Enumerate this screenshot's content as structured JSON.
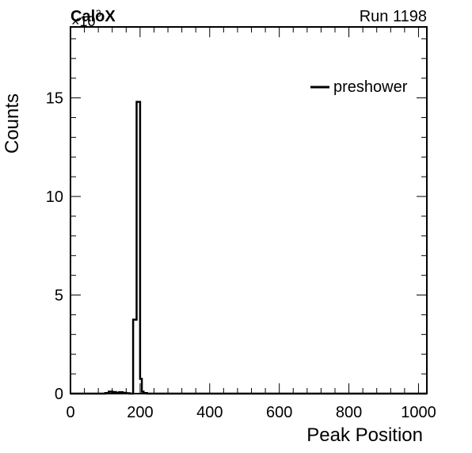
{
  "chart_data": {
    "type": "histogram-step",
    "experiment_label": "CaloX",
    "run_label": "Run 1198",
    "xlabel": "Peak Position",
    "ylabel": "Counts",
    "y_multiplier_label": "×10",
    "y_multiplier_exp": "3",
    "xlim": [
      0,
      1024
    ],
    "ylim": [
      0,
      18.6
    ],
    "y_units": "×10^3 counts",
    "x_ticks": [
      0,
      200,
      400,
      600,
      800,
      1000
    ],
    "x_tick_labels": [
      "0",
      "200",
      "400",
      "600",
      "800",
      "1000"
    ],
    "y_ticks": [
      0,
      5,
      10,
      15
    ],
    "y_tick_labels": [
      "0",
      "5",
      "10",
      "15"
    ],
    "legend": {
      "placement": "top-right",
      "entries": [
        "preshower"
      ]
    },
    "grid": false,
    "series": [
      {
        "name": "preshower",
        "color": "#000000",
        "bin_edges": [
          0,
          100,
          110,
          120,
          130,
          140,
          150,
          160,
          170,
          180,
          190,
          195,
          200,
          205,
          210,
          220,
          1024
        ],
        "values": [
          0.0,
          0.03,
          0.1,
          0.08,
          0.05,
          0.07,
          0.04,
          0.02,
          0.0,
          3.75,
          14.8,
          14.8,
          0.75,
          0.1,
          0.03,
          0.0
        ]
      }
    ]
  }
}
